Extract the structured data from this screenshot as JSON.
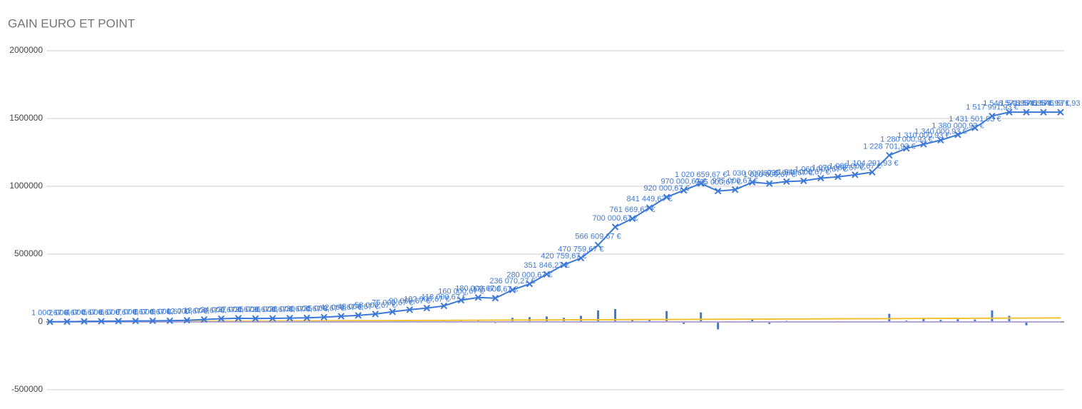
{
  "chart_data": {
    "type": "line",
    "title": "GAIN EURO ET POINT",
    "categories": [
      null,
      null,
      null,
      null,
      null,
      null,
      null,
      null,
      null,
      null,
      null,
      null,
      null,
      null,
      null,
      null,
      null,
      null,
      null,
      null,
      null,
      null,
      null,
      null,
      null,
      null,
      null,
      null,
      null,
      null,
      null,
      null,
      null,
      null,
      null,
      null,
      null,
      null,
      null,
      null,
      null,
      null,
      null,
      null,
      null,
      null,
      null,
      null,
      null,
      null,
      null,
      null,
      null,
      null,
      null,
      null,
      null,
      null,
      null,
      null
    ],
    "ylim": [
      -500000,
      2000000
    ],
    "yticks": [
      -500000,
      0,
      500000,
      1000000,
      1500000,
      2000000
    ],
    "grid": true,
    "series": [
      {
        "type": "line",
        "color": "#3c78d8",
        "marker": "x",
        "values": [
          1000.67,
          2000.67,
          4000.67,
          5000.67,
          6000.67,
          7000.67,
          8000.67,
          9000.67,
          12000.67,
          18000.67,
          24000.67,
          27000.67,
          25000.67,
          26000.67,
          28000.67,
          30000.67,
          35000.67,
          42000.67,
          48000.67,
          58000.67,
          75000.67,
          90000.67,
          102000.67,
          118000.67,
          160000.67,
          180000.67,
          175000.67,
          236070.27,
          280000.67,
          351846.27,
          420759.67,
          470759.67,
          566609.67,
          700000.67,
          761669.67,
          841449.67,
          920000.67,
          970000.67,
          1020659.67,
          965000.67,
          975000.67,
          1030000.67,
          1020000.67,
          1035000.67,
          1040000.67,
          1060000.67,
          1070000.67,
          1085000.67,
          1104291.93,
          1228701.93,
          1280000.93,
          1310000.93,
          1340000.93,
          1380000.93,
          1431501.93,
          1517991.93,
          1546571.93,
          1546571.93,
          1546571.93,
          1546571.93
        ],
        "value_labels": [
          "1 000,67 €",
          "2 000,67 €",
          "4 000,67 €",
          "5 000,67 €",
          "6 000,67 €",
          "7 000,67 €",
          "8 000,67 €",
          "9 000,67 €",
          "12 000,67 €",
          "18 000,67 €",
          "24 000,67 €",
          "27 000,67 €",
          "25 000,67 €",
          "26 000,67 €",
          "28 000,67 €",
          "30 000,67 €",
          "35 000,67 €",
          "42 000,67 €",
          "48 000,67 €",
          "58 000,67 €",
          "75 000,67 €",
          "90 000,67 €",
          "102 000,67 €",
          "118 000,67 €",
          "160 000,67 €",
          "180 000,67 €",
          "175 000,67 €",
          "236 070,27 €",
          "280 000,67 €",
          "351 846,27 €",
          "420 759,67 €",
          "470 759,67 €",
          "566 609,67 €",
          "700 000,67 €",
          "761 669,67 €",
          "841 449,67 €",
          "920 000,67 €",
          "970 000,67 €",
          "1 020 659,67 €",
          "965 000,67 €",
          "975 000,67 €",
          "1 030 000,67 €",
          "1 020 000,67 €",
          "1 035 000,67 €",
          "1 040 000,67 €",
          "1 060 000,67 €",
          "1 070 000,67 €",
          "1 085 000,67 €",
          "1 104 291,93 €",
          "1 228 701,93 €",
          "1 280 000,93 €",
          "1 310 000,93 €",
          "1 340 000,93 €",
          "1 380 000,93 €",
          "1 431 501,93 €",
          "1 517 991,93 €",
          "1 546 571,93 €",
          "1 546 571,93 €",
          "1 546 571,93 €",
          "1 546 571,93 €"
        ]
      },
      {
        "type": "bar",
        "color": "#3c78d8",
        "values": [
          0,
          500,
          800,
          600,
          700,
          500,
          600,
          800,
          1500,
          2000,
          2500,
          1500,
          -1500,
          1000,
          1200,
          1500,
          2000,
          3000,
          2500,
          4000,
          5000,
          6000,
          5000,
          8000,
          15000,
          10000,
          -8000,
          30000,
          35000,
          40000,
          30000,
          45000,
          85000,
          95000,
          15000,
          15000,
          80000,
          -15000,
          70000,
          -55000,
          5000,
          20000,
          -15000,
          8000,
          5000,
          3000,
          6000,
          4000,
          5000,
          60000,
          10000,
          30000,
          15000,
          20000,
          18000,
          85000,
          45000,
          -25000,
          0,
          0
        ]
      },
      {
        "type": "line",
        "color": "#f1c232",
        "values": [
          0,
          500,
          1000,
          1500,
          2000,
          2500,
          3000,
          3500,
          4000,
          4500,
          5000,
          5500,
          6000,
          6500,
          7000,
          7500,
          8000,
          8500,
          9000,
          9500,
          10000,
          10500,
          11000,
          11500,
          12000,
          12500,
          13000,
          13500,
          14000,
          14500,
          15000,
          15500,
          16000,
          16500,
          17000,
          17500,
          18000,
          18500,
          19000,
          19500,
          20000,
          20500,
          21000,
          21500,
          22000,
          22500,
          23000,
          23500,
          24000,
          24500,
          25000,
          25500,
          26000,
          26500,
          27000,
          27500,
          28000,
          28500,
          29000,
          29500
        ]
      },
      {
        "type": "line",
        "color": "#b4a7d6",
        "values": [
          0,
          0,
          0,
          0,
          0,
          0,
          0,
          0,
          0,
          0,
          0,
          0,
          0,
          0,
          0,
          0,
          0,
          0,
          0,
          0,
          0,
          0,
          0,
          0,
          0,
          0,
          0,
          0,
          0,
          0,
          0,
          0,
          0,
          0,
          0,
          0,
          0,
          0,
          0,
          0,
          0,
          0,
          0,
          0,
          0,
          0,
          0,
          0,
          0,
          0,
          0,
          0,
          0,
          0,
          0,
          0,
          0,
          0,
          0,
          0
        ]
      }
    ]
  }
}
